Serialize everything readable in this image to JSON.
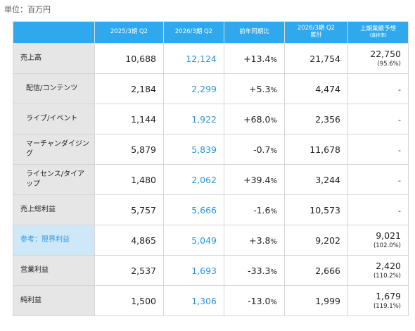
{
  "unit_label": "単位：百万円",
  "headers": {
    "c1": "2025/3期 Q2",
    "c2": "2026/3期 Q2",
    "c3": "前年同期比",
    "c4_line1": "2026/3期 Q2",
    "c4_line2": "累計",
    "c5_line1": "上期業績予想",
    "c5_line2": "(進捗率)"
  },
  "rows": [
    {
      "label": "売上高",
      "prev": "10,688",
      "cur": "12,124",
      "yoy": "+13.4",
      "cum": "21,754",
      "forecast": "22,750",
      "progress": "(95.6%)"
    },
    {
      "label": "配信/コンテンツ",
      "prev": "2,184",
      "cur": "2,299",
      "yoy": "+5.3",
      "cum": "4,474",
      "forecast": "-",
      "progress": ""
    },
    {
      "label": "ライブ/イベント",
      "prev": "1,144",
      "cur": "1,922",
      "yoy": "+68.0",
      "cum": "2,356",
      "forecast": "-",
      "progress": ""
    },
    {
      "label": "マーチャンダイジング",
      "prev": "5,879",
      "cur": "5,839",
      "yoy": "-0.7",
      "cum": "11,678",
      "forecast": "-",
      "progress": ""
    },
    {
      "label": "ライセンス/タイアップ",
      "prev": "1,480",
      "cur": "2,062",
      "yoy": "+39.4",
      "cum": "3,244",
      "forecast": "-",
      "progress": ""
    },
    {
      "label": "売上総利益",
      "prev": "5,757",
      "cur": "5,666",
      "yoy": "-1.6",
      "cum": "10,573",
      "forecast": "-",
      "progress": ""
    },
    {
      "label": "参考：限界利益",
      "prev": "4,865",
      "cur": "5,049",
      "yoy": "+3.8",
      "cum": "9,202",
      "forecast": "9,021",
      "progress": "(102.0%)"
    },
    {
      "label": "営業利益",
      "prev": "2,537",
      "cur": "1,693",
      "yoy": "-33.3",
      "cum": "2,666",
      "forecast": "2,420",
      "progress": "(110.2%)"
    },
    {
      "label": "純利益",
      "prev": "1,500",
      "cur": "1,306",
      "yoy": "-13.0",
      "cum": "1,999",
      "forecast": "1,679",
      "progress": "(119.1%)"
    }
  ],
  "percent_sign": "%",
  "colors": {
    "header_bg": "#2fa8ee",
    "current_value": "#2b95dd",
    "label_bg": "#e6e6e6",
    "highlight_label_bg": "#cfe8f8"
  }
}
